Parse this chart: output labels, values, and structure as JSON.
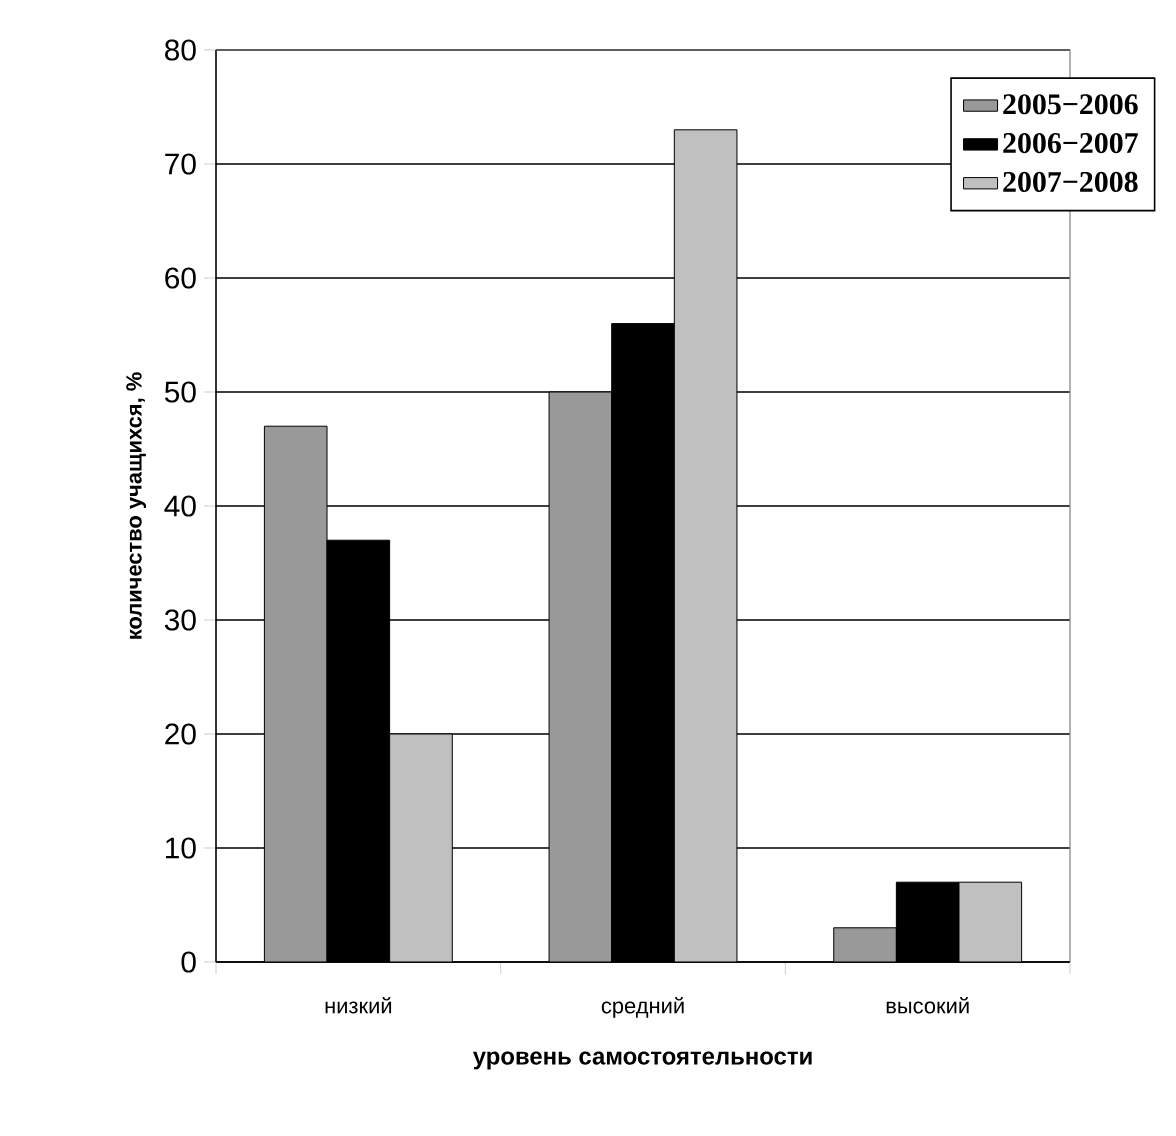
{
  "chart_data": {
    "type": "bar",
    "xlabel": "уровень самостоятельности",
    "ylabel": "количество учащихся, %",
    "categories": [
      "низкий",
      "средний",
      "высокий"
    ],
    "series": [
      {
        "name": "2005−2006",
        "color": "#999999",
        "values": [
          47,
          50,
          3
        ]
      },
      {
        "name": "2006−2007",
        "color": "#000000",
        "values": [
          37,
          56,
          7
        ]
      },
      {
        "name": "2007−2008",
        "color": "#c0c0c0",
        "values": [
          20,
          73,
          7
        ]
      }
    ],
    "ylim": [
      0,
      80
    ],
    "yticks": [
      0,
      10,
      20,
      30,
      40,
      50,
      60,
      70,
      80
    ],
    "grid": "y",
    "legend": "top right"
  }
}
